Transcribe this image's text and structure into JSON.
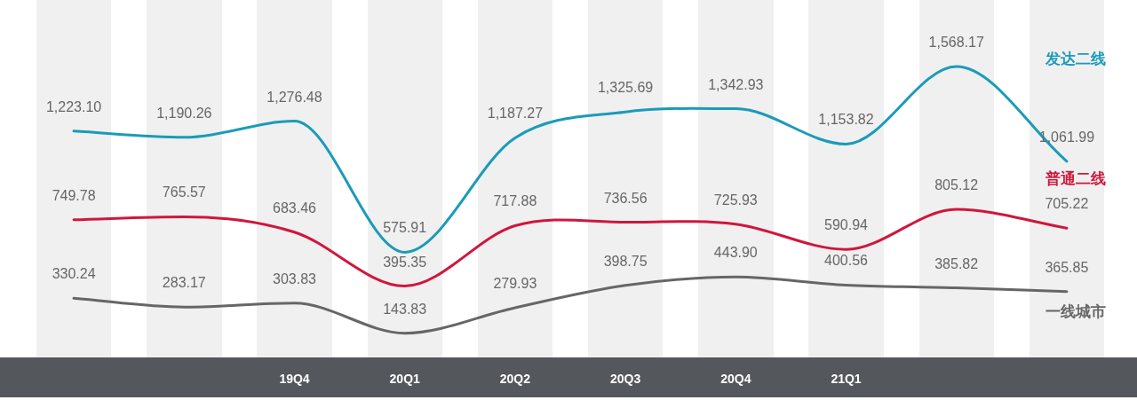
{
  "chart_data": {
    "type": "line",
    "categories": [
      null,
      null,
      "19Q4",
      "20Q1",
      "20Q2",
      "20Q3",
      "20Q4",
      "21Q1",
      null,
      null
    ],
    "marker": "none",
    "line_style": "solid",
    "series": [
      {
        "name": "发达二线",
        "color": "#1a9bb9",
        "values": [
          1223.1,
          1190.26,
          1276.48,
          575.91,
          1187.27,
          1325.69,
          1342.93,
          1153.82,
          1568.17,
          1061.99
        ],
        "value_labels": [
          "1,223.10",
          "1,190.26",
          "1,276.48",
          "575.91",
          "1,187.27",
          "1,325.69",
          "1,342.93",
          "1,153.82",
          "1,568.17",
          "1,061.99"
        ]
      },
      {
        "name": "普通二线",
        "color": "#d0163c",
        "values": [
          749.78,
          765.57,
          683.46,
          395.35,
          717.88,
          736.56,
          725.93,
          590.94,
          805.12,
          705.22
        ],
        "value_labels": [
          "749.78",
          "765.57",
          "683.46",
          "395.35",
          "717.88",
          "736.56",
          "725.93",
          "590.94",
          "805.12",
          "705.22"
        ]
      },
      {
        "name": "一线城市",
        "color": "#666666",
        "values": [
          330.24,
          283.17,
          303.83,
          143.83,
          279.93,
          398.75,
          443.9,
          400.56,
          385.82,
          365.85
        ],
        "value_labels": [
          "330.24",
          "283.17",
          "303.83",
          "143.83",
          "279.93",
          "398.75",
          "443.90",
          "400.56",
          "385.82",
          "365.85"
        ]
      }
    ]
  }
}
